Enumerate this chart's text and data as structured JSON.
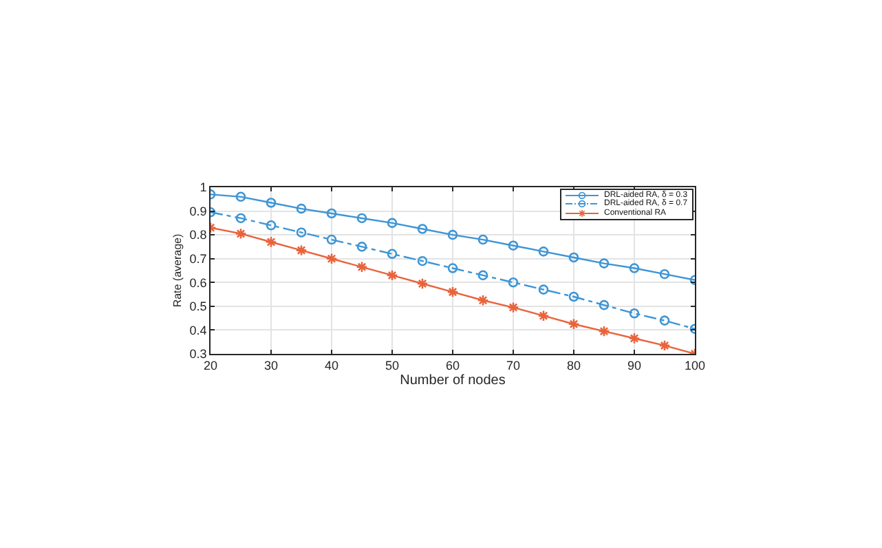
{
  "chart_data": {
    "type": "line",
    "xlabel": "Number of nodes",
    "ylabel": "Rate (average)",
    "x": [
      20,
      25,
      30,
      35,
      40,
      45,
      50,
      55,
      60,
      65,
      70,
      75,
      80,
      85,
      90,
      95,
      100
    ],
    "xlim": [
      20,
      100
    ],
    "xticks": [
      20,
      30,
      40,
      50,
      60,
      70,
      80,
      90,
      100
    ],
    "ylim": [
      0.3,
      1
    ],
    "yticks": [
      0.3,
      0.4,
      0.5,
      0.6,
      0.7,
      0.8,
      0.9,
      1
    ],
    "grid": true,
    "legend": "top right",
    "series": [
      {
        "name": "DRL-aided RA, δ = 0.3",
        "color": "#3d95d6",
        "marker": "circle",
        "line_style": "solid",
        "values": [
          0.97,
          0.96,
          0.935,
          0.91,
          0.89,
          0.87,
          0.85,
          0.825,
          0.8,
          0.78,
          0.755,
          0.73,
          0.705,
          0.68,
          0.66,
          0.635,
          0.61
        ]
      },
      {
        "name": "DRL-aided RA, δ = 0.7",
        "color": "#3d95d6",
        "marker": "circle",
        "line_style": "dashed",
        "values": [
          0.895,
          0.87,
          0.84,
          0.81,
          0.78,
          0.75,
          0.72,
          0.69,
          0.66,
          0.63,
          0.6,
          0.57,
          0.54,
          0.505,
          0.47,
          0.44,
          0.405
        ]
      },
      {
        "name": "Conventional RA",
        "color": "#e8643c",
        "marker": "cross",
        "line_style": "solid",
        "values": [
          0.83,
          0.805,
          0.77,
          0.735,
          0.7,
          0.665,
          0.63,
          0.595,
          0.56,
          0.525,
          0.495,
          0.46,
          0.425,
          0.395,
          0.365,
          0.335,
          0.3
        ]
      }
    ]
  }
}
